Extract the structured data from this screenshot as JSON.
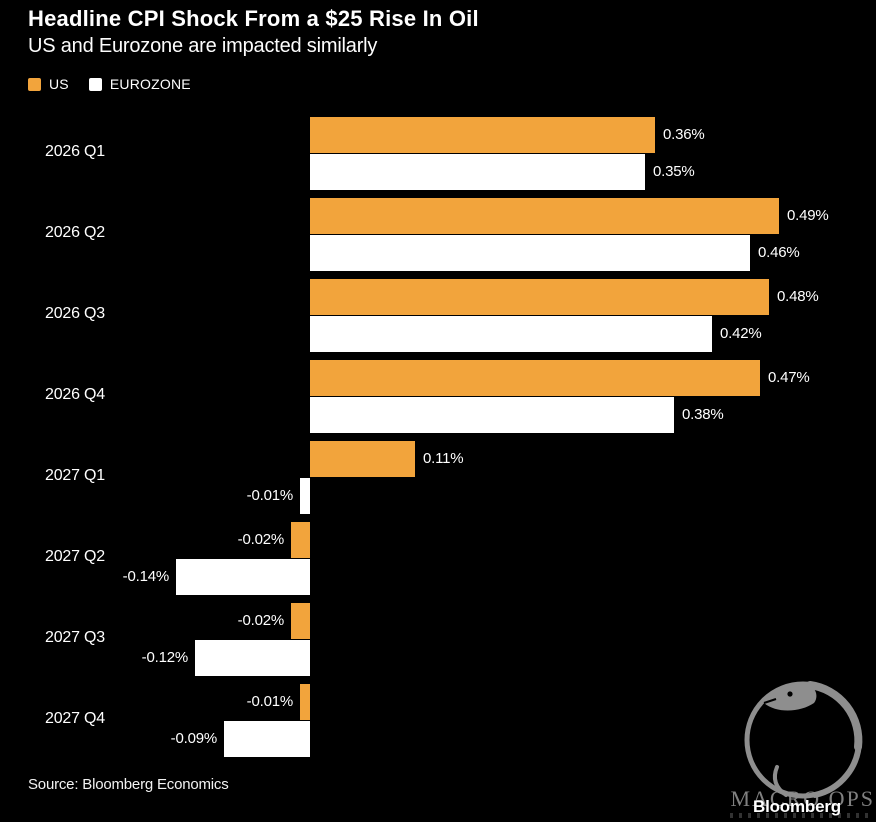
{
  "header": {
    "title": "Headline CPI Shock From a $25 Rise In Oil",
    "subtitle": "US and Eurozone are impacted similarly"
  },
  "legend": {
    "items": [
      {
        "id": "us",
        "label": "US",
        "color": "#F2A43C"
      },
      {
        "id": "eurozone",
        "label": "EUROZONE",
        "color": "#FFFFFF"
      }
    ]
  },
  "chart_data": {
    "type": "bar",
    "orientation": "horizontal",
    "title": "Headline CPI Shock From a $25 Rise In Oil",
    "xlabel": "",
    "ylabel": "",
    "grid": false,
    "legend_position": "top-left",
    "value_suffix": "%",
    "xlim": [
      -0.2,
      0.55
    ],
    "categories": [
      "2026 Q1",
      "2026 Q2",
      "2026 Q3",
      "2026 Q4",
      "2027 Q1",
      "2027 Q2",
      "2027 Q3",
      "2027 Q4"
    ],
    "series": [
      {
        "name": "US",
        "color": "#F2A43C",
        "values": [
          0.36,
          0.49,
          0.48,
          0.47,
          0.11,
          -0.02,
          -0.02,
          -0.01
        ]
      },
      {
        "name": "EUROZONE",
        "color": "#FFFFFF",
        "values": [
          0.35,
          0.46,
          0.42,
          0.38,
          -0.01,
          -0.14,
          -0.12,
          -0.09
        ]
      }
    ]
  },
  "footer": {
    "source": "Source: Bloomberg Economics",
    "brand": "Bloomberg"
  },
  "watermark": {
    "text": "MACRO OPS",
    "logo": "ouroboros-circle-logo",
    "color": "#8E8E8E"
  },
  "colors": {
    "background": "#000000",
    "text": "#FFFFFF",
    "us_bar": "#F2A43C",
    "eurozone_bar": "#FFFFFF"
  }
}
